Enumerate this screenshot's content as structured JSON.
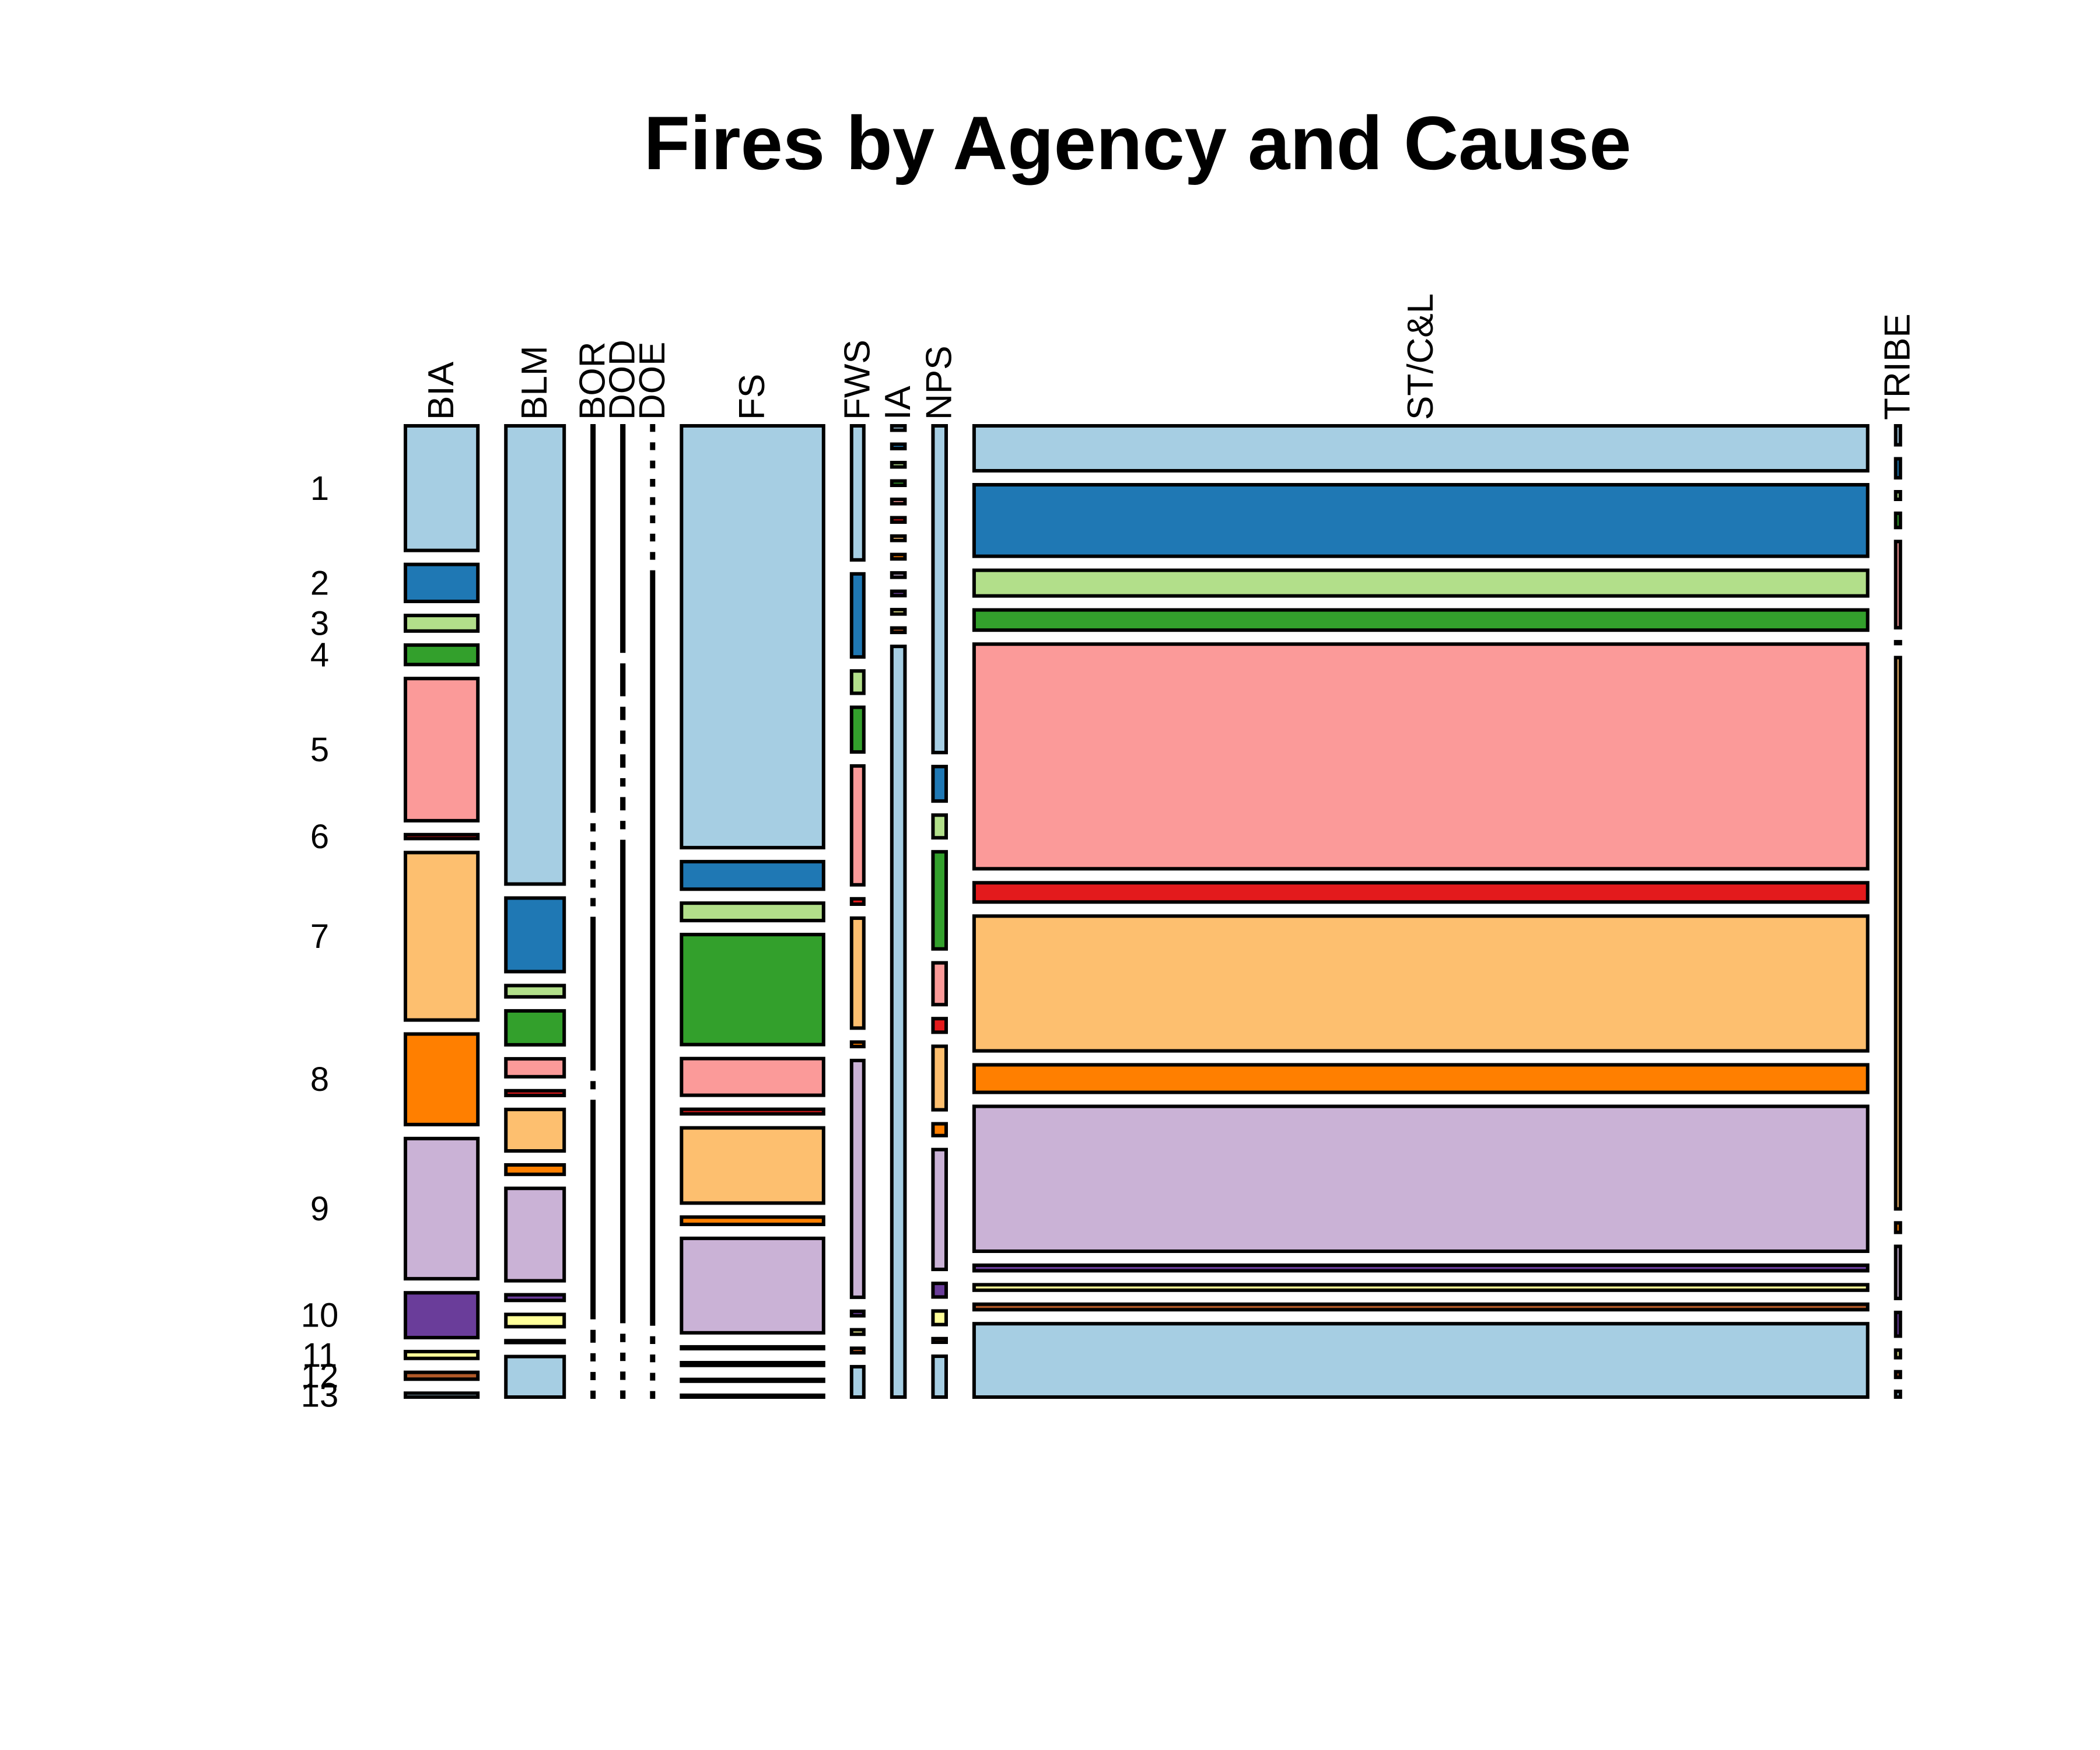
{
  "chart_data": {
    "type": "mosaic",
    "title": "Fires by Agency and Cause",
    "xlabel": "",
    "ylabel": "",
    "agencies": [
      "BIA",
      "BLM",
      "BOR",
      "DOD",
      "DOE",
      "FS",
      "FWS",
      "IA",
      "NPS",
      "ST/C&L",
      "TRIBE"
    ],
    "causes": [
      "1",
      "2",
      "3",
      "4",
      "5",
      "6",
      "7",
      "8",
      "9",
      "10",
      "11",
      "12",
      "13"
    ],
    "agency_share": [
      0.077,
      0.062,
      0.001,
      0.002,
      0.001,
      0.151,
      0.013,
      0.014,
      0.014,
      0.95,
      0.005
    ],
    "series": [
      {
        "name": "BIA",
        "values": [
          0.128,
          0.038,
          0.016,
          0.02,
          0.146,
          0.004,
          0.172,
          0.093,
          0.144,
          0.046,
          0.007,
          0.007,
          0.004
        ]
      },
      {
        "name": "BLM",
        "values": [
          0.486,
          0.078,
          0.012,
          0.036,
          0.019,
          0.005,
          0.044,
          0.01,
          0.098,
          0.006,
          0.013,
          0.002,
          0.043
        ]
      },
      {
        "name": "BOR",
        "values": [
          0.41,
          0.005,
          0.005,
          0.005,
          0.005,
          0.005,
          0.16,
          0.005,
          0.23,
          0.01,
          0.005,
          0.005,
          0.005
        ]
      },
      {
        "name": "DOD",
        "values": [
          0.23,
          0.03,
          0.01,
          0.01,
          0.01,
          0.005,
          0.01,
          0.005,
          0.49,
          0.005,
          0.005,
          0.005,
          0.005
        ]
      },
      {
        "name": "DOE",
        "values": [
          0.005,
          0.005,
          0.005,
          0.005,
          0.005,
          0.005,
          0.005,
          0.005,
          0.88,
          0.005,
          0.005,
          0.005,
          0.005
        ]
      },
      {
        "name": "FS",
        "values": [
          0.46,
          0.03,
          0.019,
          0.12,
          0.04,
          0.005,
          0.082,
          0.008,
          0.103,
          0.002,
          0.003,
          0.002,
          0.002
        ]
      },
      {
        "name": "FWS",
        "values": [
          0.15,
          0.093,
          0.025,
          0.05,
          0.133,
          0.006,
          0.123,
          0.005,
          0.265,
          0.005,
          0.005,
          0.005,
          0.034
        ]
      },
      {
        "name": "IA",
        "values": [
          0.005,
          0.005,
          0.005,
          0.005,
          0.005,
          0.005,
          0.005,
          0.005,
          0.005,
          0.005,
          0.005,
          0.005,
          0.857
        ]
      },
      {
        "name": "NPS",
        "values": [
          0.36,
          0.038,
          0.025,
          0.107,
          0.046,
          0.015,
          0.07,
          0.013,
          0.132,
          0.015,
          0.015,
          0.004,
          0.045
        ]
      },
      {
        "name": "ST/C&L",
        "values": [
          0.049,
          0.078,
          0.028,
          0.022,
          0.245,
          0.021,
          0.147,
          0.03,
          0.158,
          0.006,
          0.006,
          0.006,
          0.08
        ]
      },
      {
        "name": "TRIBE",
        "values": [
          0.02,
          0.02,
          0.008,
          0.015,
          0.091,
          0.002,
          0.582,
          0.01,
          0.055,
          0.025,
          0.008,
          0.006,
          0.006
        ]
      }
    ],
    "colors": [
      "#A6CEE3",
      "#1F78B4",
      "#B2DF8A",
      "#33A02C",
      "#FB9A99",
      "#E31A1C",
      "#FDBF6F",
      "#FF7F00",
      "#CAB2D6",
      "#6A3D9A",
      "#FFFF99",
      "#B15928",
      "#A6CEE3"
    ],
    "stroke_color": "#000000",
    "background": "#ffffff"
  }
}
